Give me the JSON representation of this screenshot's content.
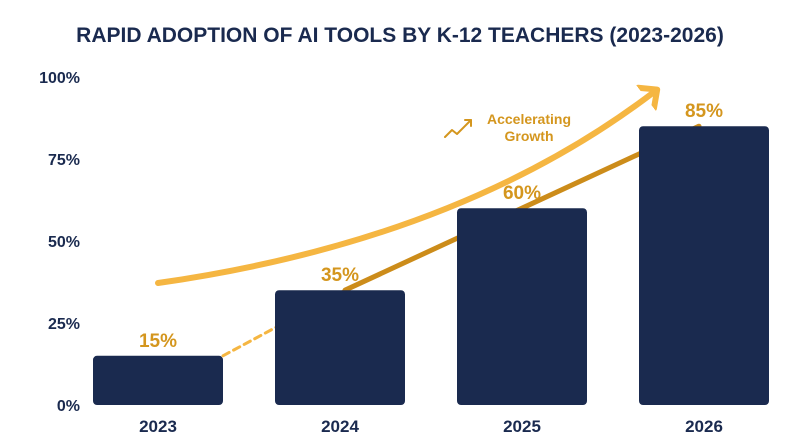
{
  "chart_data": {
    "type": "bar",
    "title": "RAPID ADOPTION OF AI TOOLS BY K-12 TEACHERS (2023-2026)",
    "categories": [
      "2023",
      "2024",
      "2025",
      "2026"
    ],
    "values": [
      15,
      35,
      60,
      85
    ],
    "data_labels": [
      "15%",
      "35%",
      "60%",
      "85%"
    ],
    "ylim": [
      0,
      100
    ],
    "yticks": [
      0,
      25,
      50,
      75,
      100
    ],
    "ytick_labels": [
      "0%",
      "25%",
      "50%",
      "75%",
      "100%"
    ],
    "xlabel": "",
    "ylabel": "",
    "grid": false,
    "legend": "none",
    "annotation": {
      "line1": "Accelerating",
      "line2": "Growth"
    },
    "colors": {
      "bar": "#1a2a4f",
      "text": "#1a2a4f",
      "accent": "#f5b642",
      "label": "#d4961e",
      "trend": "#cc8c1a"
    }
  }
}
